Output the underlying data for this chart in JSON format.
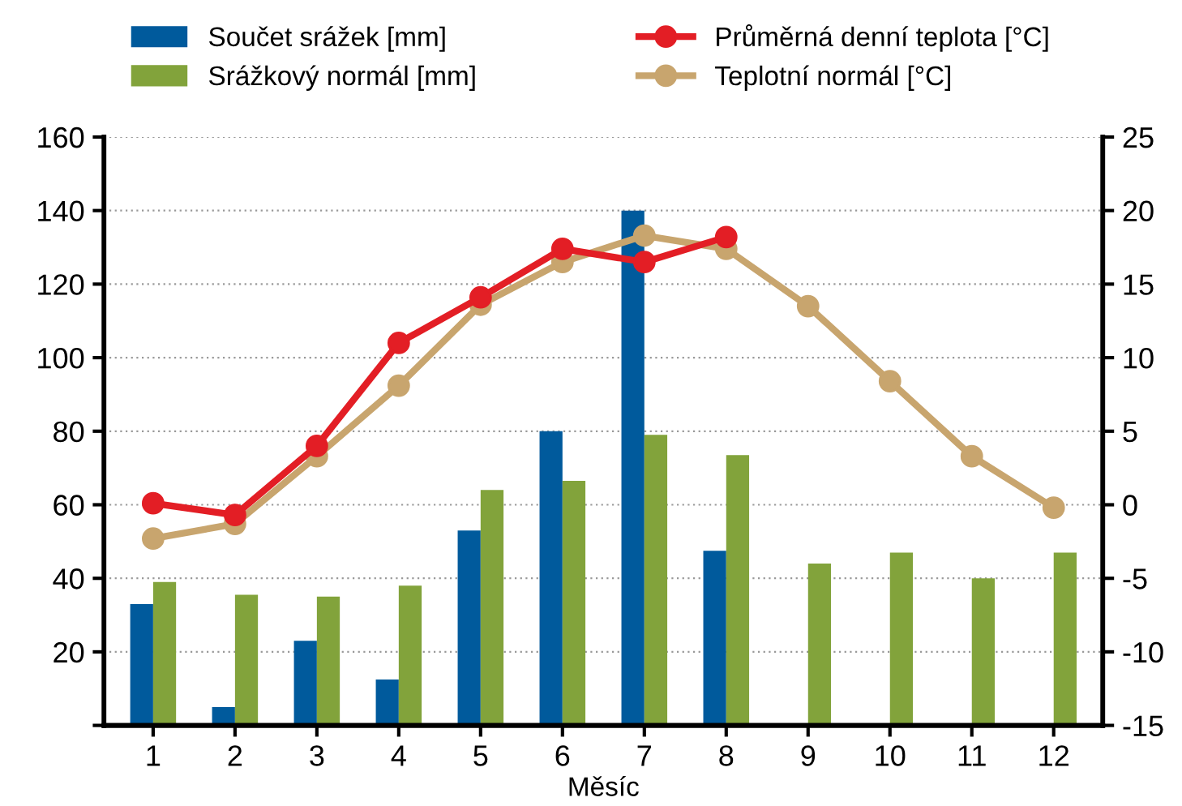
{
  "chart_data": {
    "type": "bar",
    "xlabel": "Měsíc",
    "categories": [
      "1",
      "2",
      "3",
      "4",
      "5",
      "6",
      "7",
      "8",
      "9",
      "10",
      "11",
      "12"
    ],
    "series": [
      {
        "name": "Součet srážek [mm]",
        "color": "#005a9c",
        "values": [
          33,
          5,
          23,
          12.5,
          53,
          80,
          140,
          47.5,
          null,
          null,
          null,
          null
        ]
      },
      {
        "name": "Srážkový normál [mm]",
        "color": "#82a33b",
        "values": [
          39,
          35.5,
          35,
          38,
          64,
          66.5,
          79,
          73.5,
          44,
          47,
          40,
          47
        ]
      },
      {
        "name": "Průměrná denní teplota [°C]",
        "color": "#e31e25",
        "type": "line",
        "axis": "y2",
        "values": [
          0.1,
          -0.7,
          4,
          11,
          14.1,
          17.4,
          16.5,
          18.2,
          null,
          null,
          null,
          null
        ]
      },
      {
        "name": "Teplotní normál [°C]",
        "color": "#c8a56e",
        "type": "line",
        "axis": "y2",
        "values": [
          -2.3,
          -1.3,
          3.3,
          8.1,
          13.6,
          16.5,
          18.3,
          17.4,
          13.5,
          8.4,
          3.3,
          -0.2
        ]
      }
    ],
    "ylim": [
      0,
      160
    ],
    "yticks": [
      {
        "value": 0,
        "label": null
      },
      20,
      40,
      60,
      80,
      100,
      120,
      140,
      160
    ],
    "y2lim": [
      -15,
      25
    ],
    "y2ticks": [
      -15,
      -10,
      -5,
      0,
      5,
      10,
      15,
      20,
      25
    ],
    "grid": "y",
    "legend": "top",
    "marker": "circle",
    "line_style": "solid"
  }
}
